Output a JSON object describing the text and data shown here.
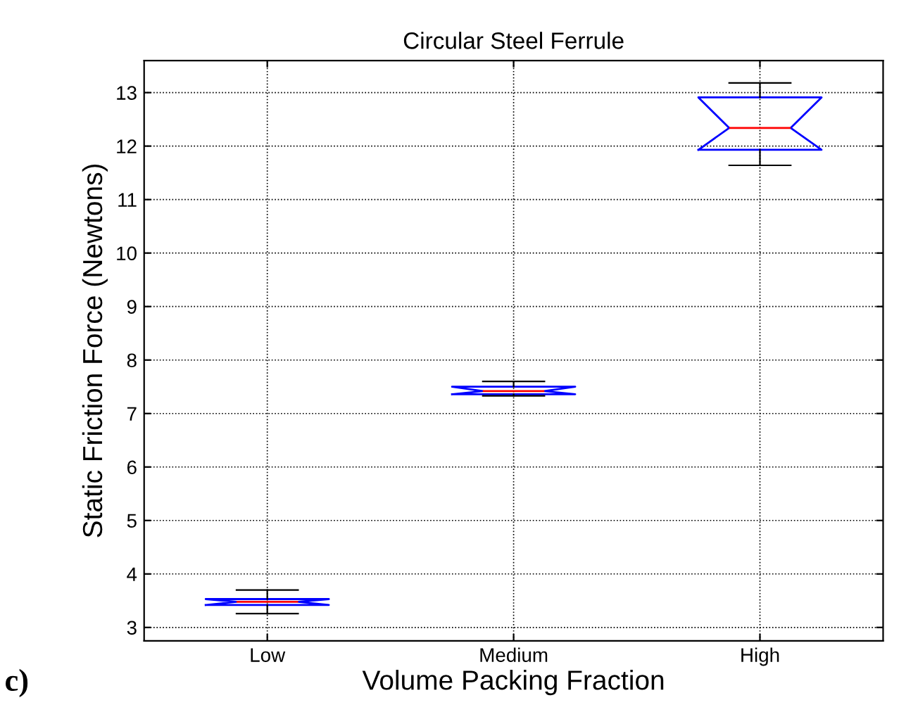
{
  "chart_data": {
    "type": "box",
    "title": "Circular Steel Ferrule",
    "xlabel": "Volume Packing Fraction",
    "ylabel": "Static Friction Force (Newtons)",
    "categories": [
      "Low",
      "Medium",
      "High"
    ],
    "boxes": [
      {
        "low": 3.26,
        "q1": 3.42,
        "median": 3.48,
        "q3": 3.53,
        "high": 3.7
      },
      {
        "low": 7.33,
        "q1": 7.36,
        "median": 7.42,
        "q3": 7.5,
        "high": 7.6
      },
      {
        "low": 11.64,
        "q1": 11.93,
        "median": 12.34,
        "q3": 12.91,
        "high": 13.18
      }
    ],
    "color": "#0000ff",
    "ylim": [
      2.75,
      13.6
    ],
    "yticks": [
      3,
      4,
      5,
      6,
      7,
      8,
      9,
      10,
      11,
      12,
      13
    ],
    "grid": true,
    "annotations": [
      "c)"
    ]
  }
}
